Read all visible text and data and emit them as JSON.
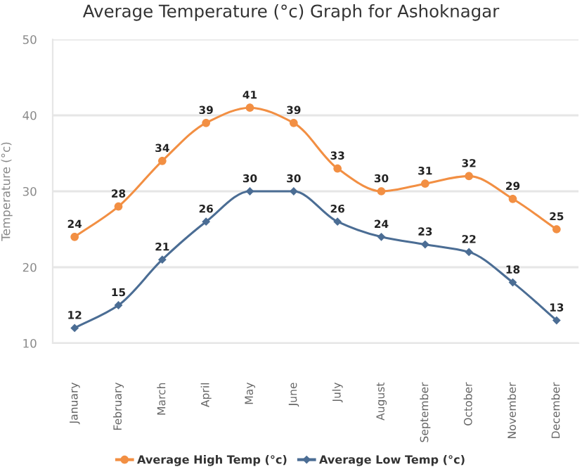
{
  "chart_data": {
    "type": "line",
    "title": "Average Temperature (°c) Graph for Ashoknagar",
    "ylabel": "Temperature (°c)",
    "categories": [
      "January",
      "February",
      "March",
      "April",
      "May",
      "June",
      "July",
      "August",
      "September",
      "October",
      "November",
      "December"
    ],
    "series": [
      {
        "name": "Average High Temp (°c)",
        "color": "#f28f43",
        "marker": "circle",
        "values": [
          24,
          28,
          34,
          39,
          41,
          39,
          33,
          30,
          31,
          32,
          29,
          25
        ]
      },
      {
        "name": "Average Low Temp (°c)",
        "color": "#4b6d94",
        "marker": "diamond",
        "values": [
          12,
          15,
          21,
          26,
          30,
          30,
          26,
          24,
          23,
          22,
          18,
          13
        ]
      }
    ],
    "ylim": [
      10,
      50
    ],
    "yticks": [
      10,
      20,
      30,
      40,
      50
    ],
    "grid": "y",
    "legend": "bottom",
    "data_labels": true,
    "line_style": "solid"
  }
}
